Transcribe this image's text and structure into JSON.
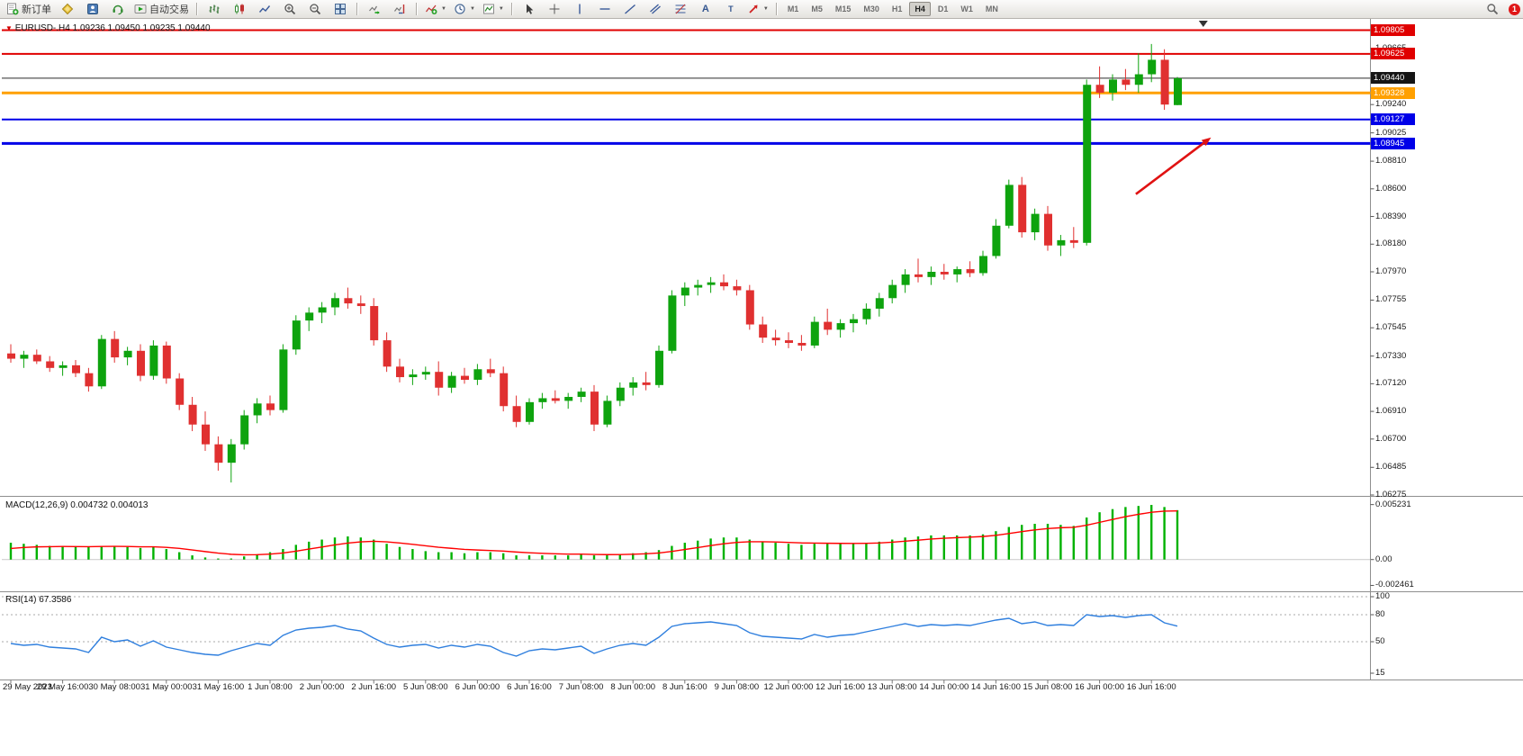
{
  "window": {
    "notification_count": "1"
  },
  "toolbar": {
    "new_order_label": "新订单",
    "autotrading_label": "自动交易",
    "timeframes": [
      "M1",
      "M5",
      "M15",
      "M30",
      "H1",
      "H4",
      "D1",
      "W1",
      "MN"
    ],
    "active_timeframe": "H4"
  },
  "icons": {
    "text_tool": "A",
    "label_tool": "T"
  },
  "chart": {
    "direction_icon": "▼",
    "symbol_period": "EURUSD-.H4",
    "ohlc": "1.09236 1.09450 1.09235 1.09440"
  },
  "indicators": {
    "macd_label": "MACD(12,26,9)",
    "macd_values": "0.004732 0.004013",
    "rsi_label": "RSI(14)",
    "rsi_value": "67.3586"
  },
  "price_scale": {
    "ticks": [
      {
        "label": "1.09665",
        "value": 1.09665
      },
      {
        "label": "1.09240",
        "value": 1.0924
      },
      {
        "label": "1.09025",
        "value": 1.09025
      },
      {
        "label": "1.08810",
        "value": 1.0881
      },
      {
        "label": "1.08600",
        "value": 1.086
      },
      {
        "label": "1.08390",
        "value": 1.0839
      },
      {
        "label": "1.08180",
        "value": 1.0818
      },
      {
        "label": "1.07970",
        "value": 1.0797
      },
      {
        "label": "1.07755",
        "value": 1.07755
      },
      {
        "label": "1.07545",
        "value": 1.07545
      },
      {
        "label": "1.07330",
        "value": 1.0733
      },
      {
        "label": "1.07120",
        "value": 1.0712
      },
      {
        "label": "1.06910",
        "value": 1.0691
      },
      {
        "label": "1.06700",
        "value": 1.067
      },
      {
        "label": "1.06485",
        "value": 1.06485
      },
      {
        "label": "1.06275",
        "value": 1.06275
      }
    ],
    "line_labels": [
      {
        "label": "1.09805",
        "value": 1.09805,
        "bg": "#E00000"
      },
      {
        "label": "1.09625",
        "value": 1.09625,
        "bg": "#E00000"
      },
      {
        "label": "1.09440",
        "value": 1.0944,
        "bg": "#151515"
      },
      {
        "label": "1.09328",
        "value": 1.09328,
        "bg": "#FFA000"
      },
      {
        "label": "1.09127",
        "value": 1.09127,
        "bg": "#0000E8"
      },
      {
        "label": "1.08945",
        "value": 1.08945,
        "bg": "#0000E8"
      }
    ]
  },
  "macd_scale": {
    "labels": [
      {
        "label": "0.005231",
        "value": 0.005231
      },
      {
        "label": "0.00",
        "value": 0
      },
      {
        "label": "-0.002461",
        "value": -0.002461
      }
    ]
  },
  "rsi_scale": {
    "labels": [
      {
        "label": "100",
        "value": 100
      },
      {
        "label": "80",
        "value": 80
      },
      {
        "label": "50",
        "value": 50
      },
      {
        "label": "15",
        "value": 15
      }
    ],
    "levels": [
      100,
      80,
      50
    ]
  },
  "time_scale": {
    "labels": [
      "29 May 2023",
      "29 May 16:00",
      "30 May 08:00",
      "31 May 00:00",
      "31 May 16:00",
      "1 Jun 08:00",
      "2 Jun 00:00",
      "2 Jun 16:00",
      "5 Jun 08:00",
      "6 Jun 00:00",
      "6 Jun 16:00",
      "7 Jun 08:00",
      "8 Jun 00:00",
      "8 Jun 16:00",
      "9 Jun 08:00",
      "12 Jun 00:00",
      "12 Jun 16:00",
      "13 Jun 08:00",
      "14 Jun 00:00",
      "14 Jun 16:00",
      "15 Jun 08:00",
      "16 Jun 00:00",
      "16 Jun 16:00"
    ]
  },
  "colors": {
    "up": "#0EA30E",
    "down": "#E03030",
    "macd_hist": "#00B200",
    "macd_signal": "#FF0000",
    "rsi": "#2F7FDE",
    "arrow": "#E01212",
    "bid_line": "#2b2b2b"
  },
  "chart_data": {
    "type": "candlestick-with-indicators",
    "symbol": "EURUSD-",
    "period": "H4",
    "price_range": [
      1.06275,
      1.0987
    ],
    "macd_range": [
      -0.00285,
      0.0058
    ],
    "rsi_range": [
      10,
      103
    ],
    "bars_per_label": 4,
    "shift_marker_bar": 92,
    "bid": 1.0944,
    "hlines": [
      {
        "price": 1.09805,
        "color": "#E00000",
        "width": 2
      },
      {
        "price": 1.09625,
        "color": "#E00000",
        "width": 2
      },
      {
        "price": 1.09328,
        "color": "#FFA000",
        "width": 3
      },
      {
        "price": 1.09127,
        "color": "#0000E8",
        "width": 2
      },
      {
        "price": 1.08945,
        "color": "#0000E8",
        "width": 3
      }
    ],
    "arrow": {
      "from": {
        "bar": 86.8,
        "price": 1.0856
      },
      "to": {
        "bar": 92.6,
        "price": 1.0899
      }
    },
    "candles": [
      [
        1.0735,
        1.0742,
        1.0728,
        1.0731
      ],
      [
        1.0731,
        1.0737,
        1.0724,
        1.0734
      ],
      [
        1.0734,
        1.0738,
        1.0727,
        1.0729
      ],
      [
        1.0729,
        1.0733,
        1.0721,
        1.0724
      ],
      [
        1.0724,
        1.0729,
        1.0718,
        1.0726
      ],
      [
        1.0726,
        1.073,
        1.0717,
        1.072
      ],
      [
        1.072,
        1.0724,
        1.0706,
        1.071
      ],
      [
        1.071,
        1.0749,
        1.0708,
        1.0746
      ],
      [
        1.0746,
        1.0752,
        1.0728,
        1.0732
      ],
      [
        1.0732,
        1.074,
        1.0726,
        1.0737
      ],
      [
        1.0737,
        1.0742,
        1.0714,
        1.0718
      ],
      [
        1.0718,
        1.0745,
        1.0715,
        1.0741
      ],
      [
        1.0741,
        1.0744,
        1.0712,
        1.0716
      ],
      [
        1.0716,
        1.072,
        1.0692,
        1.0696
      ],
      [
        1.0696,
        1.0702,
        1.0676,
        1.0681
      ],
      [
        1.0681,
        1.0691,
        1.0661,
        1.0666
      ],
      [
        1.0666,
        1.0672,
        1.0646,
        1.0652
      ],
      [
        1.0652,
        1.067,
        1.0637,
        1.0666
      ],
      [
        1.0666,
        1.0692,
        1.0662,
        1.0688
      ],
      [
        1.0688,
        1.0701,
        1.0682,
        1.0697
      ],
      [
        1.0697,
        1.0703,
        1.0688,
        1.0692
      ],
      [
        1.0692,
        1.0742,
        1.069,
        1.0738
      ],
      [
        1.0738,
        1.0764,
        1.0734,
        1.076
      ],
      [
        1.076,
        1.077,
        1.0752,
        1.0766
      ],
      [
        1.0766,
        1.0774,
        1.0758,
        1.077
      ],
      [
        1.077,
        1.0781,
        1.0764,
        1.0777
      ],
      [
        1.0777,
        1.0785,
        1.0769,
        1.0773
      ],
      [
        1.0773,
        1.0779,
        1.0765,
        1.0771
      ],
      [
        1.0771,
        1.0777,
        1.0741,
        1.0745
      ],
      [
        1.0745,
        1.0751,
        1.0721,
        1.0725
      ],
      [
        1.0725,
        1.0731,
        1.0713,
        1.0717
      ],
      [
        1.0717,
        1.0723,
        1.0711,
        1.0719
      ],
      [
        1.0719,
        1.0725,
        1.0715,
        1.0721
      ],
      [
        1.0721,
        1.0729,
        1.0703,
        1.0709
      ],
      [
        1.0709,
        1.0721,
        1.0705,
        1.0718
      ],
      [
        1.0718,
        1.0724,
        1.0712,
        1.0715
      ],
      [
        1.0715,
        1.0727,
        1.0711,
        1.0723
      ],
      [
        1.0723,
        1.0731,
        1.0717,
        1.072
      ],
      [
        1.072,
        1.0725,
        1.0691,
        1.0695
      ],
      [
        1.0695,
        1.0703,
        1.0679,
        1.0683
      ],
      [
        1.0683,
        1.0701,
        1.0681,
        1.0698
      ],
      [
        1.0698,
        1.0705,
        1.0693,
        1.0701
      ],
      [
        1.0701,
        1.0707,
        1.0697,
        1.0699
      ],
      [
        1.0699,
        1.0705,
        1.0693,
        1.0702
      ],
      [
        1.0702,
        1.0709,
        1.0698,
        1.0706
      ],
      [
        1.0706,
        1.0711,
        1.0676,
        1.0681
      ],
      [
        1.0681,
        1.0703,
        1.0679,
        1.0699
      ],
      [
        1.0699,
        1.0713,
        1.0695,
        1.0709
      ],
      [
        1.0709,
        1.0717,
        1.0703,
        1.0713
      ],
      [
        1.0713,
        1.0721,
        1.0707,
        1.0711
      ],
      [
        1.0711,
        1.0741,
        1.0709,
        1.0737
      ],
      [
        1.0737,
        1.0783,
        1.0735,
        1.0779
      ],
      [
        1.0779,
        1.0789,
        1.0771,
        1.0785
      ],
      [
        1.0785,
        1.0791,
        1.0779,
        1.0787
      ],
      [
        1.0787,
        1.0793,
        1.0781,
        1.0789
      ],
      [
        1.0789,
        1.0795,
        1.0783,
        1.0786
      ],
      [
        1.0786,
        1.0791,
        1.0779,
        1.0783
      ],
      [
        1.0783,
        1.0787,
        1.0753,
        1.0757
      ],
      [
        1.0757,
        1.0763,
        1.0743,
        1.0747
      ],
      [
        1.0747,
        1.0753,
        1.0741,
        1.0745
      ],
      [
        1.0745,
        1.0751,
        1.0739,
        1.0743
      ],
      [
        1.0743,
        1.0749,
        1.0737,
        1.0741
      ],
      [
        1.0741,
        1.0763,
        1.0739,
        1.0759
      ],
      [
        1.0759,
        1.0769,
        1.0749,
        1.0753
      ],
      [
        1.0753,
        1.0761,
        1.0747,
        1.0758
      ],
      [
        1.0758,
        1.0765,
        1.0751,
        1.0761
      ],
      [
        1.0761,
        1.0773,
        1.0757,
        1.0769
      ],
      [
        1.0769,
        1.0781,
        1.0763,
        1.0777
      ],
      [
        1.0777,
        1.0791,
        1.0773,
        1.0787
      ],
      [
        1.0787,
        1.0799,
        1.0781,
        1.0795
      ],
      [
        1.0795,
        1.0807,
        1.0789,
        1.0793
      ],
      [
        1.0793,
        1.0801,
        1.0787,
        1.0797
      ],
      [
        1.0797,
        1.0803,
        1.0791,
        1.0795
      ],
      [
        1.0795,
        1.0801,
        1.0789,
        1.0799
      ],
      [
        1.0799,
        1.0805,
        1.0793,
        1.0796
      ],
      [
        1.0796,
        1.0813,
        1.0794,
        1.0809
      ],
      [
        1.0809,
        1.0837,
        1.0807,
        1.0832
      ],
      [
        1.0832,
        1.0867,
        1.083,
        1.0863
      ],
      [
        1.0863,
        1.0869,
        1.0823,
        1.0827
      ],
      [
        1.0827,
        1.0845,
        1.0821,
        1.0841
      ],
      [
        1.0841,
        1.0847,
        1.0813,
        1.0817
      ],
      [
        1.0817,
        1.0825,
        1.0809,
        1.0821
      ],
      [
        1.0821,
        1.0831,
        1.0815,
        1.0819
      ],
      [
        1.0819,
        1.0943,
        1.0817,
        1.0939
      ],
      [
        1.0939,
        1.0953,
        1.0929,
        1.0933
      ],
      [
        1.0933,
        1.0947,
        1.0927,
        1.0943
      ],
      [
        1.0943,
        1.0951,
        1.0935,
        1.0939
      ],
      [
        1.0939,
        1.0963,
        1.0933,
        1.0947
      ],
      [
        1.0947,
        1.097,
        1.0941,
        1.0958
      ],
      [
        1.0958,
        1.0966,
        1.092,
        1.0924
      ],
      [
        1.09236,
        1.0945,
        1.09235,
        1.0944
      ]
    ],
    "macd_histogram": [
      0.0016,
      0.0015,
      0.0014,
      0.0013,
      0.0013,
      0.0012,
      0.0012,
      0.0013,
      0.0013,
      0.0012,
      0.0011,
      0.0012,
      0.001,
      0.0007,
      0.0004,
      0.0002,
      0.0001,
      0.0001,
      0.0003,
      0.0005,
      0.0007,
      0.001,
      0.0014,
      0.0017,
      0.0019,
      0.0021,
      0.0022,
      0.0021,
      0.0019,
      0.0015,
      0.0012,
      0.001,
      0.0008,
      0.0007,
      0.0007,
      0.0006,
      0.0007,
      0.0007,
      0.0006,
      0.0004,
      0.0004,
      0.0004,
      0.0004,
      0.0004,
      0.0005,
      0.0004,
      0.0004,
      0.0005,
      0.0006,
      0.0007,
      0.0009,
      0.0013,
      0.0016,
      0.0018,
      0.002,
      0.0021,
      0.0021,
      0.0019,
      0.0017,
      0.0016,
      0.0015,
      0.0014,
      0.0015,
      0.0015,
      0.0015,
      0.0015,
      0.0016,
      0.0017,
      0.0019,
      0.0021,
      0.0022,
      0.0023,
      0.0023,
      0.0023,
      0.0023,
      0.0024,
      0.0027,
      0.0031,
      0.0033,
      0.0034,
      0.0034,
      0.0033,
      0.0032,
      0.004,
      0.0045,
      0.0048,
      0.005,
      0.0051,
      0.0052,
      0.005,
      0.0047
    ],
    "signal_seed": 0.0009,
    "rsi": [
      48,
      46,
      47,
      44,
      43,
      42,
      38,
      55,
      50,
      52,
      45,
      51,
      44,
      41,
      38,
      36,
      35,
      40,
      44,
      48,
      46,
      57,
      63,
      65,
      66,
      68,
      64,
      62,
      54,
      47,
      44,
      46,
      47,
      43,
      46,
      44,
      47,
      45,
      38,
      34,
      40,
      42,
      41,
      43,
      45,
      37,
      42,
      46,
      48,
      46,
      55,
      67,
      70,
      71,
      72,
      70,
      68,
      60,
      56,
      55,
      54,
      53,
      58,
      55,
      57,
      58,
      61,
      64,
      67,
      70,
      67,
      69,
      68,
      69,
      68,
      71,
      74,
      76,
      70,
      72,
      68,
      69,
      68,
      80,
      78,
      79,
      77,
      79,
      80,
      71,
      67.36
    ]
  }
}
